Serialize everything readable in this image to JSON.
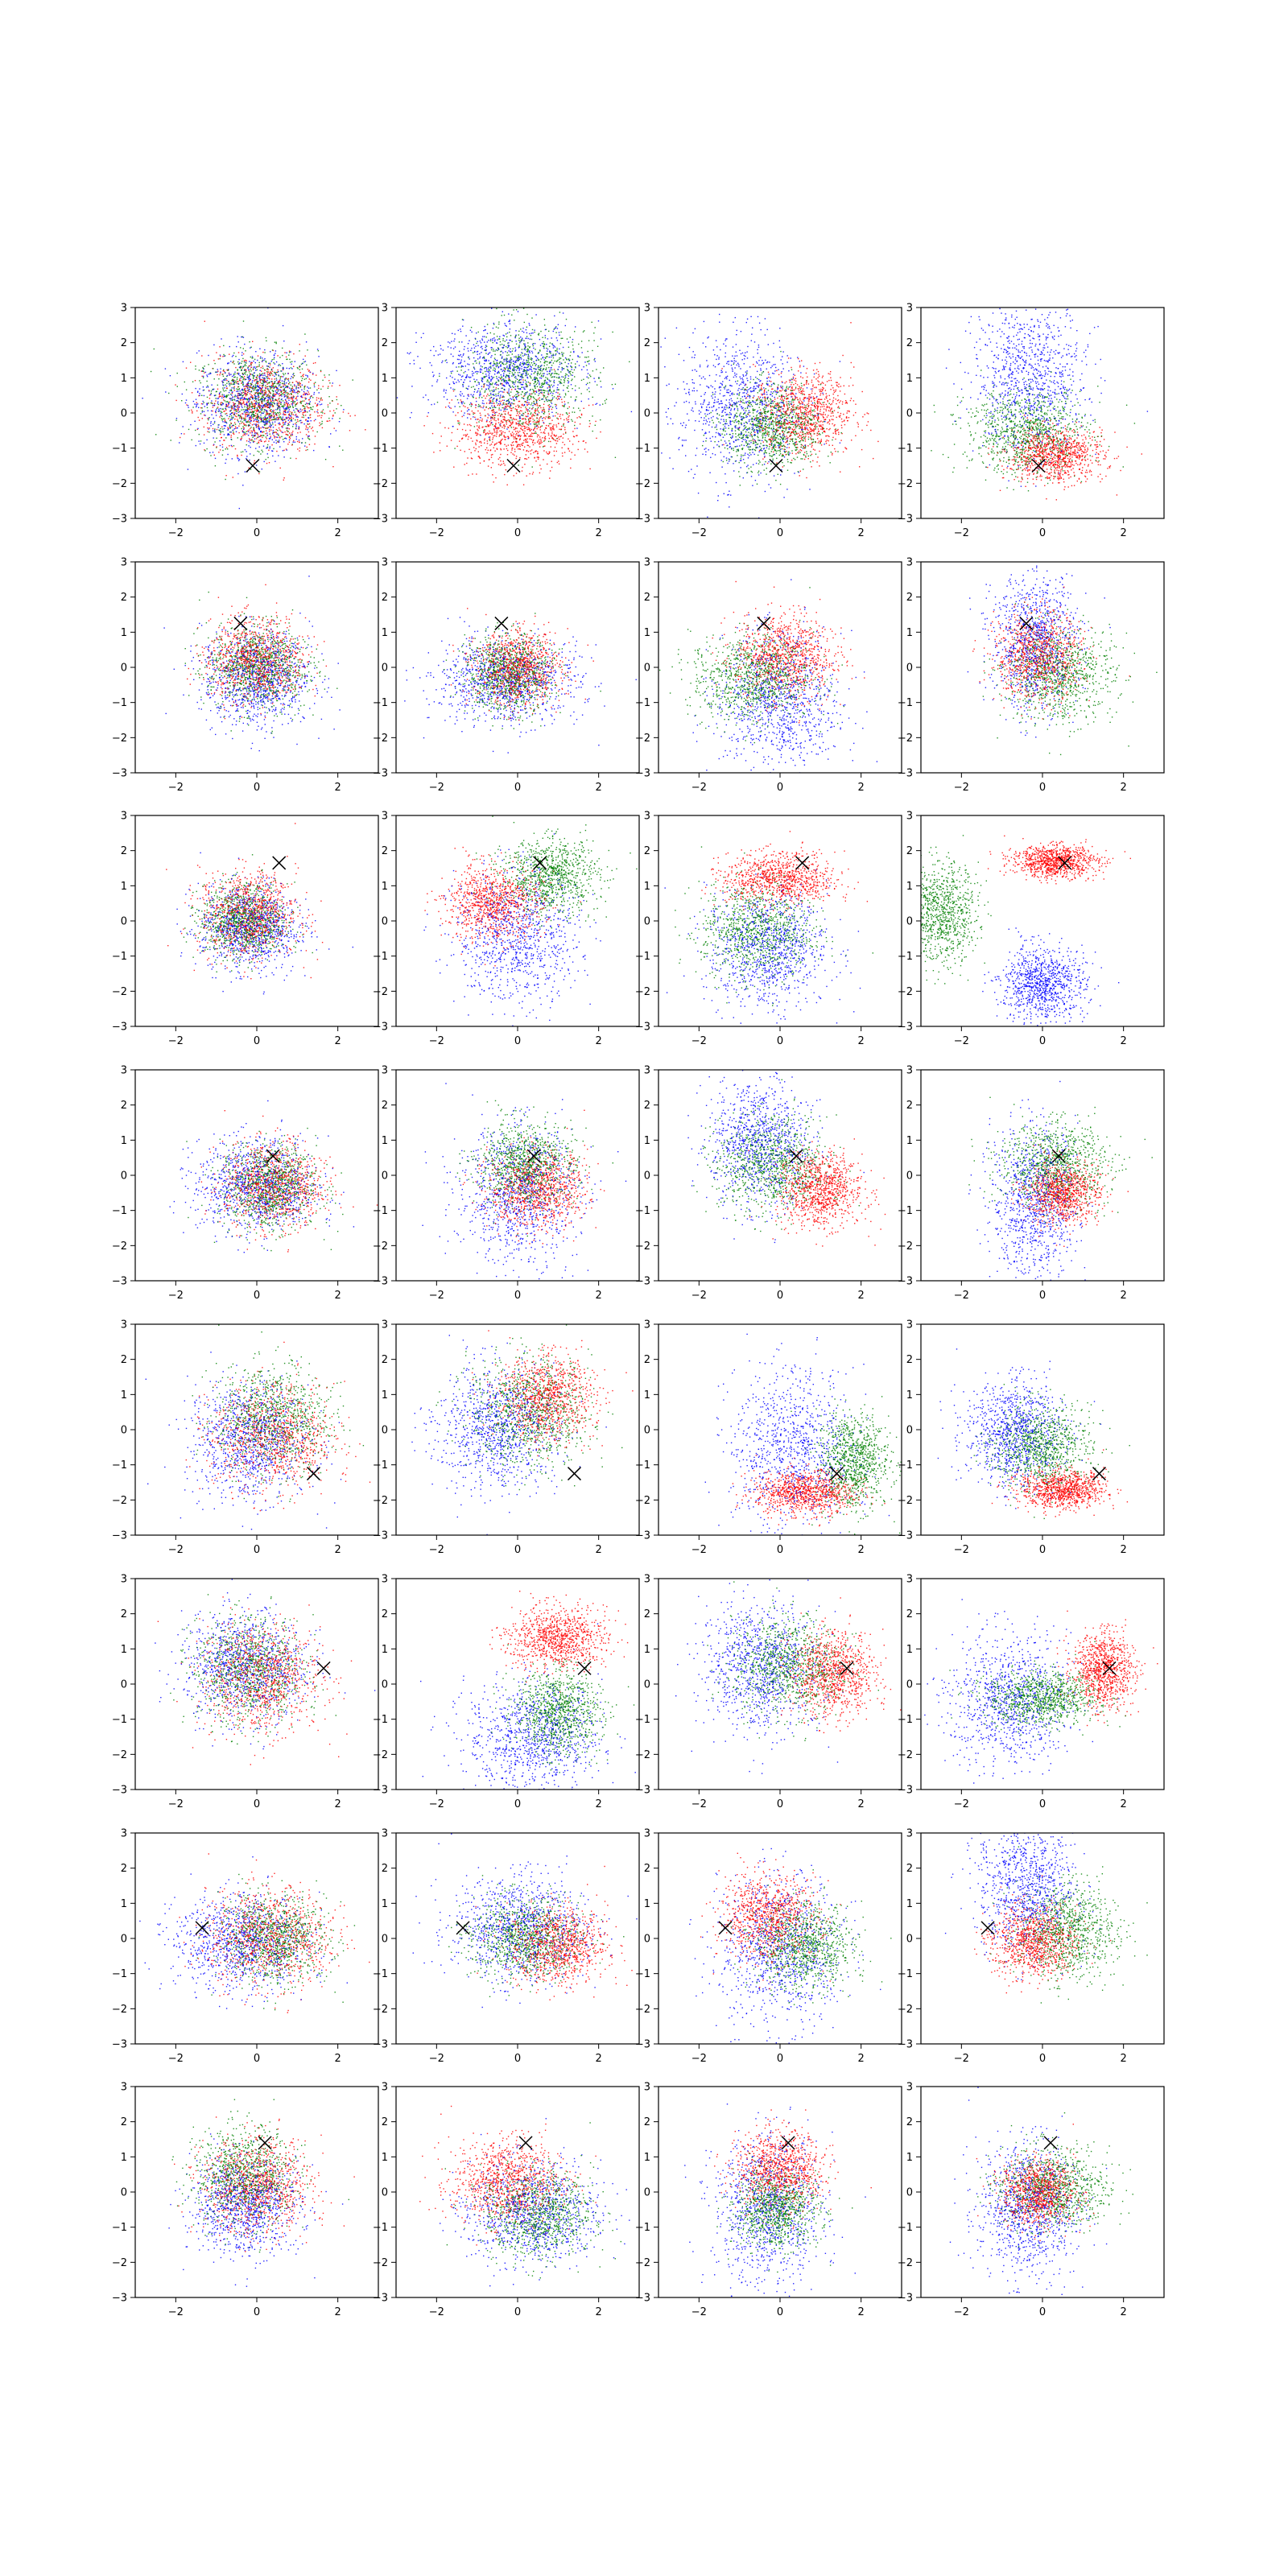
{
  "figure": {
    "rows": 8,
    "cols": 4,
    "background": "#ffffff"
  },
  "chart_data": {
    "type": "scatter",
    "description_free": true,
    "xlim": [
      -3,
      3
    ],
    "ylim": [
      -3,
      3
    ],
    "xticks": [
      -2,
      0,
      2
    ],
    "xtick_labels": [
      "−2",
      "0",
      "2"
    ],
    "yticks": [
      3,
      2,
      1,
      0,
      -1,
      -2,
      -3
    ],
    "ytick_labels": [
      "3",
      "2",
      "1",
      "0",
      "−1",
      "−2",
      "−3"
    ],
    "series_colors": {
      "blue": "#0000ff",
      "green": "#008000",
      "red": "#ff0000"
    },
    "marker": {
      "symbol": "x",
      "color": "#000000"
    },
    "points_per_series": 900,
    "rows": [
      {
        "marker": [
          -0.1,
          -1.5
        ],
        "panels": [
          {
            "blue": [
              0,
              0.3,
              1.0,
              1.0
            ],
            "green": [
              0,
              0.4,
              1.0,
              0.9
            ],
            "red": [
              0.2,
              0.2,
              1.0,
              0.9
            ]
          },
          {
            "blue": [
              -0.3,
              1.2,
              1.3,
              0.9
            ],
            "green": [
              0.3,
              1.0,
              1.1,
              1.0
            ],
            "red": [
              0,
              -0.5,
              1.0,
              0.7
            ]
          },
          {
            "blue": [
              -1.0,
              0.2,
              1.0,
              1.4
            ],
            "green": [
              -0.2,
              -0.4,
              0.8,
              0.8
            ],
            "red": [
              0.6,
              0,
              0.8,
              0.8
            ]
          },
          {
            "blue": [
              -0.3,
              1.0,
              0.9,
              1.4
            ],
            "green": [
              -0.4,
              -0.5,
              1.0,
              0.8
            ],
            "red": [
              0.3,
              -1.2,
              0.8,
              0.5
            ]
          }
        ]
      },
      {
        "marker": [
          -0.4,
          1.25
        ],
        "panels": [
          {
            "blue": [
              0,
              -0.3,
              0.9,
              0.9
            ],
            "green": [
              0,
              0,
              0.8,
              0.8
            ],
            "red": [
              0,
              0.2,
              0.8,
              0.8
            ]
          },
          {
            "blue": [
              -0.3,
              -0.4,
              1.2,
              0.8
            ],
            "green": [
              -0.2,
              -0.2,
              0.7,
              0.7
            ],
            "red": [
              0,
              0,
              0.7,
              0.7
            ]
          },
          {
            "blue": [
              0,
              -1.0,
              1.0,
              1.3
            ],
            "green": [
              -0.7,
              -0.3,
              1.0,
              0.8
            ],
            "red": [
              0.1,
              0.3,
              0.8,
              0.8
            ]
          },
          {
            "blue": [
              -0.2,
              0.8,
              0.7,
              1.3
            ],
            "green": [
              0.4,
              -0.2,
              0.9,
              0.9
            ],
            "red": [
              -0.1,
              0.3,
              0.7,
              0.8
            ]
          }
        ]
      },
      {
        "marker": [
          0.55,
          1.65
        ],
        "panels": [
          {
            "blue": [
              -0.2,
              -0.2,
              0.8,
              0.8
            ],
            "green": [
              -0.3,
              0,
              0.7,
              0.7
            ],
            "red": [
              -0.2,
              0.2,
              0.8,
              0.8
            ]
          },
          {
            "blue": [
              0,
              -0.5,
              1.0,
              1.2
            ],
            "green": [
              0.8,
              1.3,
              0.8,
              0.7
            ],
            "red": [
              -0.6,
              0.5,
              0.8,
              0.7
            ]
          },
          {
            "blue": [
              -0.3,
              -0.8,
              1.0,
              1.1
            ],
            "green": [
              -0.6,
              -0.3,
              0.9,
              0.9
            ],
            "red": [
              0,
              1.2,
              0.9,
              0.5
            ]
          },
          {
            "blue": [
              0,
              -1.8,
              0.7,
              0.7
            ],
            "green": [
              -2.5,
              0.2,
              0.6,
              0.9
            ],
            "red": [
              0.3,
              1.7,
              0.7,
              0.3
            ]
          }
        ]
      },
      {
        "marker": [
          0.4,
          0.55
        ],
        "panels": [
          {
            "blue": [
              0,
              -0.3,
              1.0,
              0.9
            ],
            "green": [
              0.3,
              -0.3,
              0.8,
              0.8
            ],
            "red": [
              0.4,
              -0.3,
              0.8,
              0.8
            ]
          },
          {
            "blue": [
              0,
              -0.5,
              1.0,
              1.3
            ],
            "green": [
              0.2,
              0.3,
              0.8,
              0.8
            ],
            "red": [
              0.5,
              -0.4,
              0.8,
              0.7
            ]
          },
          {
            "blue": [
              -0.5,
              0.9,
              0.8,
              1.2
            ],
            "green": [
              -0.2,
              0.3,
              0.9,
              0.9
            ],
            "red": [
              1.0,
              -0.4,
              0.7,
              0.7
            ]
          },
          {
            "blue": [
              -0.2,
              -0.8,
              0.7,
              1.4
            ],
            "green": [
              0.3,
              0.3,
              0.9,
              0.8
            ],
            "red": [
              0.5,
              -0.5,
              0.6,
              0.6
            ]
          }
        ]
      },
      {
        "marker": [
          1.4,
          -1.25
        ],
        "panels": [
          {
            "blue": [
              -0.2,
              -0.3,
              1.0,
              1.1
            ],
            "green": [
              0.4,
              0.3,
              0.9,
              1.0
            ],
            "red": [
              0.4,
              -0.2,
              1.0,
              1.0
            ]
          },
          {
            "blue": [
              -0.5,
              0,
              1.0,
              1.2
            ],
            "green": [
              0.3,
              0.5,
              1.0,
              1.0
            ],
            "red": [
              0.7,
              0.9,
              0.8,
              0.8
            ]
          },
          {
            "blue": [
              0.3,
              -0.5,
              1.0,
              1.5
            ],
            "green": [
              1.8,
              -0.9,
              0.6,
              0.9
            ],
            "red": [
              0.6,
              -1.8,
              0.8,
              0.4
            ]
          },
          {
            "blue": [
              -0.7,
              -0.1,
              0.8,
              1.0
            ],
            "green": [
              0,
              -0.5,
              0.8,
              0.8
            ],
            "red": [
              0.5,
              -1.7,
              0.7,
              0.35
            ]
          }
        ]
      },
      {
        "marker": [
          1.65,
          0.45
        ],
        "panels": [
          {
            "blue": [
              -0.3,
              0.5,
              1.0,
              1.0
            ],
            "green": [
              -0.2,
              0.4,
              0.9,
              1.0
            ],
            "red": [
              0.1,
              0.2,
              1.0,
              1.0
            ]
          },
          {
            "blue": [
              0.4,
              -1.5,
              1.1,
              1.0
            ],
            "green": [
              1.0,
              -0.8,
              0.7,
              0.8
            ],
            "red": [
              1.0,
              1.3,
              0.8,
              0.6
            ]
          },
          {
            "blue": [
              -0.5,
              0.5,
              1.0,
              1.2
            ],
            "green": [
              0.2,
              0.5,
              0.9,
              0.9
            ],
            "red": [
              1.3,
              0.3,
              0.7,
              0.8
            ]
          },
          {
            "blue": [
              -0.8,
              -0.5,
              1.0,
              1.3
            ],
            "green": [
              0,
              -0.4,
              0.9,
              0.5
            ],
            "red": [
              1.5,
              0.4,
              0.5,
              0.7
            ]
          }
        ]
      },
      {
        "marker": [
          -1.35,
          0.3
        ],
        "panels": [
          {
            "blue": [
              -0.4,
              -0.1,
              1.1,
              0.9
            ],
            "green": [
              0.4,
              0,
              0.9,
              0.8
            ],
            "red": [
              0.3,
              0,
              1.0,
              0.9
            ]
          },
          {
            "blue": [
              0,
              0.3,
              1.1,
              1.0
            ],
            "green": [
              0.2,
              0,
              0.9,
              0.8
            ],
            "red": [
              1.0,
              -0.2,
              0.8,
              0.7
            ]
          },
          {
            "blue": [
              0,
              -0.4,
              1.0,
              1.4
            ],
            "green": [
              0.6,
              -0.2,
              0.8,
              0.8
            ],
            "red": [
              -0.3,
              0.6,
              0.8,
              0.8
            ]
          },
          {
            "blue": [
              -0.4,
              1.5,
              0.8,
              1.2
            ],
            "green": [
              0.6,
              0.2,
              0.8,
              0.9
            ],
            "red": [
              -0.2,
              -0.1,
              0.7,
              0.7
            ]
          }
        ]
      },
      {
        "marker": [
          0.2,
          1.4
        ],
        "panels": [
          {
            "blue": [
              -0.3,
              -0.4,
              0.9,
              0.9
            ],
            "green": [
              -0.3,
              0.4,
              0.8,
              0.9
            ],
            "red": [
              0,
              0.2,
              0.9,
              0.9
            ]
          },
          {
            "blue": [
              0.4,
              -0.6,
              1.1,
              1.0
            ],
            "green": [
              0.5,
              -0.6,
              0.9,
              0.8
            ],
            "red": [
              -0.3,
              0.3,
              0.9,
              0.8
            ]
          },
          {
            "blue": [
              -0.3,
              -0.5,
              0.9,
              1.4
            ],
            "green": [
              -0.1,
              -0.5,
              0.7,
              0.7
            ],
            "red": [
              0,
              0.6,
              0.7,
              0.7
            ]
          },
          {
            "blue": [
              -0.4,
              -0.5,
              0.8,
              1.3
            ],
            "green": [
              0.3,
              0.1,
              0.9,
              0.8
            ],
            "red": [
              -0.1,
              0,
              0.6,
              0.6
            ]
          }
        ]
      }
    ]
  }
}
